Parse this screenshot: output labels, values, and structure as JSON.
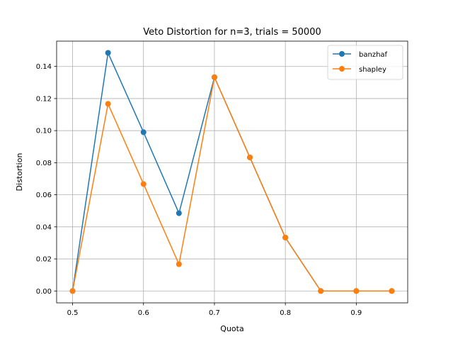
{
  "chart_data": {
    "type": "line",
    "title": "Veto Distortion for n=3, trials = 50000",
    "xlabel": "Quota",
    "ylabel": "Distortion",
    "x": [
      0.5,
      0.55,
      0.6,
      0.65,
      0.7,
      0.75,
      0.8,
      0.85,
      0.9,
      0.95
    ],
    "xlim": [
      0.4775,
      0.9725
    ],
    "ylim": [
      -0.0074,
      0.1558
    ],
    "x_ticks": [
      0.5,
      0.6,
      0.7,
      0.8,
      0.9
    ],
    "x_tick_labels": [
      "0.5",
      "0.6",
      "0.7",
      "0.8",
      "0.9"
    ],
    "y_ticks": [
      0.0,
      0.02,
      0.04,
      0.06,
      0.08,
      0.1,
      0.12,
      0.14
    ],
    "y_tick_labels": [
      "0.00",
      "0.02",
      "0.04",
      "0.06",
      "0.08",
      "0.10",
      "0.12",
      "0.14"
    ],
    "grid": true,
    "legend_position": "top-right",
    "series": [
      {
        "name": "banzhaf",
        "color": "#1f77b4",
        "marker": "circle",
        "values": [
          0.0,
          0.1485,
          0.099,
          0.0485,
          0.1333,
          0.0833,
          0.0333,
          0.0,
          0.0,
          0.0
        ]
      },
      {
        "name": "shapley",
        "color": "#ff7f0e",
        "marker": "circle",
        "values": [
          0.0,
          0.1167,
          0.0667,
          0.0167,
          0.1333,
          0.0833,
          0.0333,
          0.0,
          0.0,
          0.0
        ]
      }
    ]
  }
}
